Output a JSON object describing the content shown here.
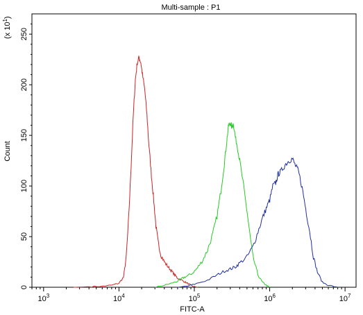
{
  "chart_data": {
    "type": "line",
    "title": "Multi-sample : P1",
    "xlabel": "FITC-A",
    "ylabel": "Count",
    "y_multiplier_label": "(x 10",
    "y_multiplier_exp": "1",
    "x_scale": "log",
    "xlim": [
      700,
      14000000
    ],
    "ylim": [
      0,
      270
    ],
    "x_ticks": [
      {
        "value": 1000,
        "base": "10",
        "exp": "3"
      },
      {
        "value": 10000,
        "base": "10",
        "exp": "4"
      },
      {
        "value": 100000,
        "base": "10",
        "exp": "5"
      },
      {
        "value": 1000000,
        "base": "10",
        "exp": "6"
      },
      {
        "value": 10000000,
        "base": "10",
        "exp": "7"
      }
    ],
    "y_ticks": [
      {
        "value": 0,
        "label": "0"
      },
      {
        "value": 50,
        "label": "50"
      },
      {
        "value": 100,
        "label": "100"
      },
      {
        "value": 150,
        "label": "150"
      },
      {
        "value": 200,
        "label": "200"
      },
      {
        "value": 250,
        "label": "250"
      }
    ],
    "grid": false,
    "series": [
      {
        "color": "#cc2222",
        "points": [
          [
            2500,
            0
          ],
          [
            4000,
            0.5
          ],
          [
            6000,
            1
          ],
          [
            8000,
            2
          ],
          [
            10000,
            4
          ],
          [
            11500,
            10
          ],
          [
            12500,
            30
          ],
          [
            13500,
            70
          ],
          [
            14500,
            120
          ],
          [
            15500,
            170
          ],
          [
            16500,
            205
          ],
          [
            17500,
            222
          ],
          [
            18500,
            227
          ],
          [
            19500,
            222
          ],
          [
            20500,
            210
          ],
          [
            22000,
            195
          ],
          [
            23500,
            170
          ],
          [
            25000,
            140
          ],
          [
            27000,
            110
          ],
          [
            29000,
            85
          ],
          [
            31000,
            60
          ],
          [
            33000,
            45
          ],
          [
            36000,
            32
          ],
          [
            40000,
            25
          ],
          [
            45000,
            20
          ],
          [
            50000,
            16
          ],
          [
            55000,
            12
          ],
          [
            60000,
            9
          ],
          [
            68000,
            7
          ],
          [
            76000,
            5
          ],
          [
            85000,
            3
          ],
          [
            95000,
            1
          ],
          [
            110000,
            0
          ]
        ]
      },
      {
        "color": "#22cc22",
        "points": [
          [
            30000,
            0
          ],
          [
            40000,
            2
          ],
          [
            50000,
            4
          ],
          [
            60000,
            6
          ],
          [
            70000,
            9
          ],
          [
            80000,
            11
          ],
          [
            95000,
            14
          ],
          [
            110000,
            19
          ],
          [
            130000,
            27
          ],
          [
            150000,
            37
          ],
          [
            175000,
            52
          ],
          [
            200000,
            70
          ],
          [
            225000,
            95
          ],
          [
            250000,
            122
          ],
          [
            270000,
            145
          ],
          [
            285000,
            160
          ],
          [
            300000,
            162
          ],
          [
            315000,
            158
          ],
          [
            330000,
            162
          ],
          [
            350000,
            148
          ],
          [
            375000,
            138
          ],
          [
            400000,
            125
          ],
          [
            450000,
            100
          ],
          [
            500000,
            75
          ],
          [
            550000,
            50
          ],
          [
            600000,
            30
          ],
          [
            700000,
            12
          ],
          [
            800000,
            5
          ],
          [
            900000,
            2
          ],
          [
            1000000,
            0
          ]
        ]
      },
      {
        "color": "#1f2f9c",
        "points": [
          [
            60000,
            0
          ],
          [
            80000,
            1
          ],
          [
            100000,
            3
          ],
          [
            150000,
            7
          ],
          [
            200000,
            12
          ],
          [
            250000,
            16
          ],
          [
            300000,
            18
          ],
          [
            350000,
            20
          ],
          [
            400000,
            24
          ],
          [
            500000,
            30
          ],
          [
            600000,
            40
          ],
          [
            700000,
            55
          ],
          [
            800000,
            68
          ],
          [
            900000,
            78
          ],
          [
            1000000,
            86
          ],
          [
            1100000,
            100
          ],
          [
            1200000,
            103
          ],
          [
            1300000,
            112
          ],
          [
            1400000,
            114
          ],
          [
            1600000,
            121
          ],
          [
            1800000,
            125
          ],
          [
            2000000,
            127
          ],
          [
            2200000,
            120
          ],
          [
            2400000,
            115
          ],
          [
            2700000,
            98
          ],
          [
            3000000,
            78
          ],
          [
            3400000,
            55
          ],
          [
            3800000,
            30
          ],
          [
            4300000,
            15
          ],
          [
            5000000,
            5
          ],
          [
            6000000,
            2
          ],
          [
            8000000,
            0
          ]
        ]
      }
    ]
  }
}
